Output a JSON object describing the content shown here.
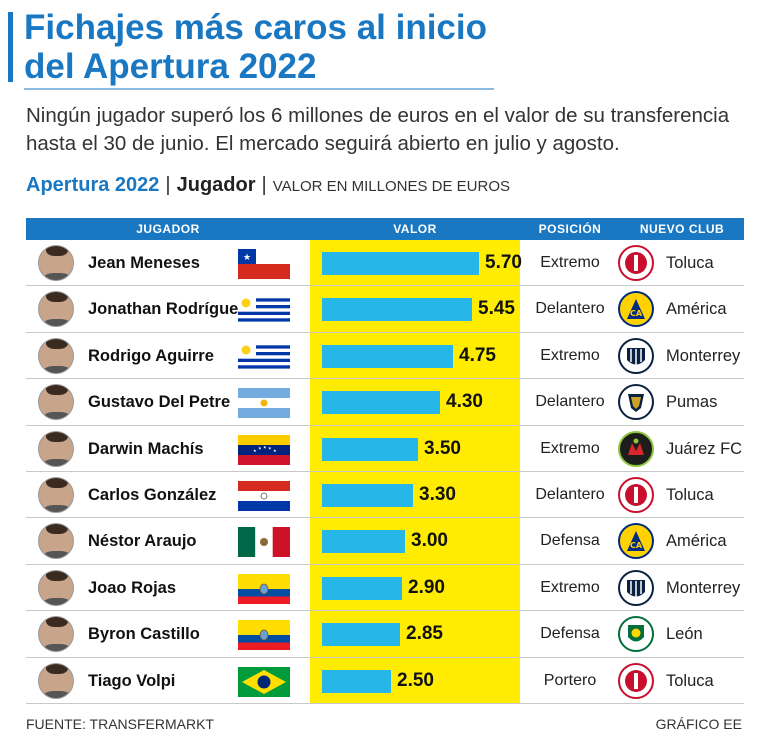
{
  "title": "Fichajes más caros al inicio del Apertura 2022",
  "subtitle": "Ningún jugador superó los 6 millones de euros en el valor de su transferencia hasta el 30 de junio. El mercado seguirá abierto en julio y agosto.",
  "header": {
    "tournament": "Apertura 2022",
    "separator": "|",
    "player_label": "Jugador",
    "value_label": "VALOR EN MILLONES DE EUROS"
  },
  "columns": {
    "player": "JUGADOR",
    "value": "VALOR",
    "position": "POSICIÓN",
    "club": "NUEVO CLUB"
  },
  "footer": {
    "source": "FUENTE: TRANSFERMARKT",
    "credit": "GRÁFICO EE"
  },
  "colors": {
    "accent": "#1a78c2",
    "bar": "#27b6e8",
    "highlight": "#ffec00"
  },
  "chart_data": {
    "type": "bar",
    "orientation": "horizontal",
    "title": "Apertura 2022 | Jugador | VALOR EN MILLONES DE EUROS",
    "xlabel": "VALOR",
    "ylabel": "JUGADOR",
    "xlim": [
      0,
      6
    ],
    "categories": [
      "Jean Meneses",
      "Jonathan Rodríguez",
      "Rodrigo Aguirre",
      "Gustavo Del Petre",
      "Darwin Machís",
      "Carlos González",
      "Néstor Araujo",
      "Joao Rojas",
      "Byron Castillo",
      "Tiago Volpi"
    ],
    "values": [
      5.7,
      5.45,
      4.75,
      4.3,
      3.5,
      3.3,
      3.0,
      2.9,
      2.85,
      2.5
    ],
    "value_labels": [
      "5.70",
      "5.45",
      "4.75",
      "4.30",
      "3.50",
      "3.30",
      "3.00",
      "2.90",
      "2.85",
      "2.50"
    ],
    "positions": [
      "Extremo",
      "Delantero",
      "Extremo",
      "Delantero",
      "Extremo",
      "Delantero",
      "Defensa",
      "Extremo",
      "Defensa",
      "Portero"
    ],
    "clubs": [
      "Toluca",
      "América",
      "Monterrey",
      "Pumas",
      "Juárez FC",
      "Toluca",
      "América",
      "Monterrey",
      "León",
      "Toluca"
    ],
    "flags": [
      "chile",
      "uruguay",
      "uruguay",
      "argentina",
      "venezuela",
      "paraguay",
      "mexico",
      "ecuador",
      "ecuador",
      "brazil"
    ],
    "crests": [
      "toluca",
      "america",
      "monterrey",
      "pumas",
      "juarez",
      "toluca",
      "america",
      "monterrey",
      "leon",
      "toluca"
    ]
  }
}
